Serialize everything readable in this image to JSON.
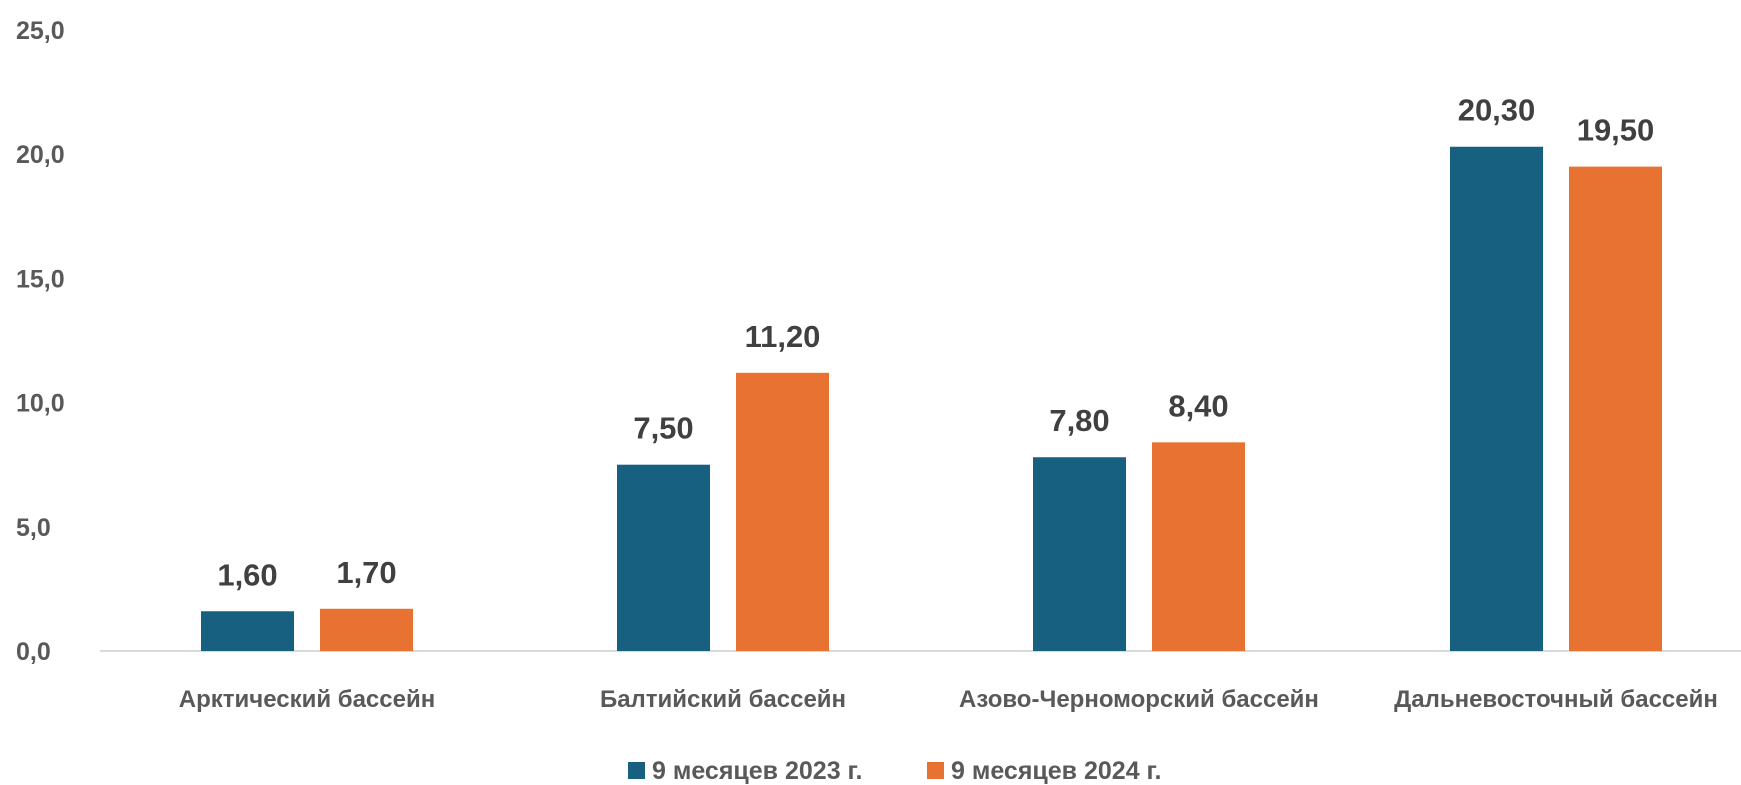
{
  "chart_data": {
    "type": "bar",
    "title": "",
    "xlabel": "",
    "ylabel": "",
    "categories": [
      "Арктический бассейн",
      "Балтийский бассейн",
      "Азово-Черноморский бассейн",
      "Дальневосточный бассейн"
    ],
    "series": [
      {
        "name": "9 месяцев 2023 г.",
        "color": "#17607f",
        "values": [
          1.6,
          7.5,
          7.8,
          20.3
        ],
        "labels": [
          "1,60",
          "7,50",
          "7,80",
          "20,30"
        ]
      },
      {
        "name": "9 месяцев 2024 г.",
        "color": "#e87232",
        "values": [
          1.7,
          11.2,
          8.4,
          19.5
        ],
        "labels": [
          "1,70",
          "11,20",
          "8,40",
          "19,50"
        ]
      }
    ],
    "ylim": [
      0,
      25
    ],
    "yticks": [
      0,
      5,
      10,
      15,
      20,
      25
    ],
    "ytick_labels": [
      "0,0",
      "5,0",
      "10,0",
      "15,0",
      "20,0",
      "25,0"
    ],
    "grid": false,
    "legend": "bottom-center"
  }
}
